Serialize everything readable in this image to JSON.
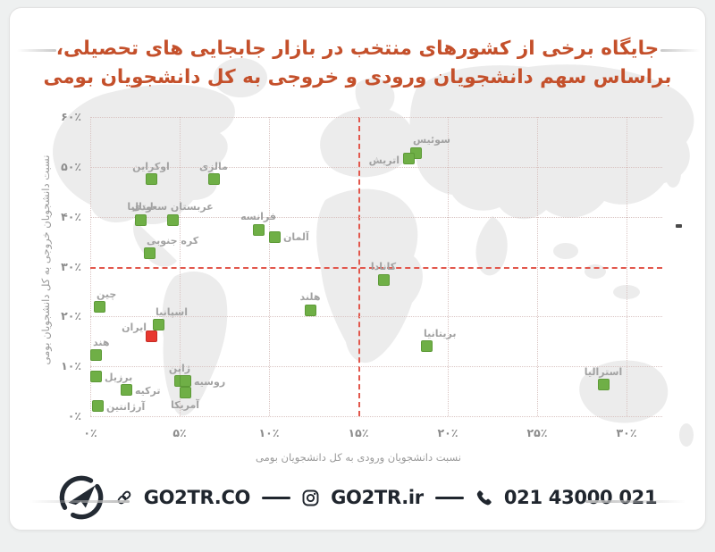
{
  "page": {
    "title_line1": "جایگاه برخی از کشورهای منتخب در بازار جابجایی های تحصیلی،",
    "title_line2": "براساس سهم دانشجویان ورودی و خروجی به کل دانشجویان بومی",
    "title_color": "#c4502b"
  },
  "chart_data": {
    "type": "scatter",
    "xlabel": "نسبت دانشجویان ورودی به کل دانشجویان بومی",
    "ylabel": "نسبت دانشجویان خروجی به کل دانشجویان بومی",
    "xlim": [
      0,
      30
    ],
    "ylim": [
      0,
      60
    ],
    "x_tick_values": [
      0,
      5,
      10,
      15,
      20,
      25,
      30
    ],
    "x_tick_labels": [
      "۰٪",
      "۵٪",
      "۱۰٪",
      "۱۵٪",
      "۲۰٪",
      "۲۵٪",
      "۳۰٪"
    ],
    "y_tick_values": [
      0,
      10,
      20,
      30,
      40,
      50,
      60
    ],
    "y_tick_labels": [
      "۰٪",
      "۱۰٪",
      "۲۰٪",
      "۳۰٪",
      "۴۰٪",
      "۵۰٪",
      "۶۰٪"
    ],
    "grid": true,
    "grid_color": "#d9c4c2",
    "reference_lines": {
      "vertical_x": 15,
      "horizontal_y": 30,
      "color": "#e2574c"
    },
    "marker_color": "#6faf46",
    "highlight_color": "#e8382f",
    "points": [
      {
        "name": "اوکراین",
        "en": "ukraine",
        "x": 3.4,
        "y": 47.5,
        "label_pos": "top"
      },
      {
        "name": "مالزی",
        "en": "malaysia",
        "x": 6.9,
        "y": 47.5,
        "label_pos": "top"
      },
      {
        "name": "ایتالیا",
        "en": "italy",
        "x": 2.8,
        "y": 39.4,
        "label_pos": "top"
      },
      {
        "name": "عربستان سعودی",
        "en": "saudi-arabia",
        "x": 4.6,
        "y": 39.4,
        "label_pos": "top"
      },
      {
        "name": "کره جنوبی",
        "en": "south-korea",
        "x": 3.3,
        "y": 32.6,
        "label_pos": "top-right"
      },
      {
        "name": "سوئیس",
        "en": "switzerland",
        "x": 18.2,
        "y": 52.8,
        "label_pos": "top-right"
      },
      {
        "name": "اتریش",
        "en": "austria",
        "x": 17.8,
        "y": 51.7,
        "label_pos": "left"
      },
      {
        "name": "فرانسه",
        "en": "france",
        "x": 9.4,
        "y": 37.4,
        "label_pos": "top"
      },
      {
        "name": "آلمان",
        "en": "germany",
        "x": 10.3,
        "y": 36.0,
        "label_pos": "right"
      },
      {
        "name": "کانادا",
        "en": "canada",
        "x": 16.4,
        "y": 27.4,
        "label_pos": "top"
      },
      {
        "name": "هلند",
        "en": "netherlands",
        "x": 12.3,
        "y": 21.3,
        "label_pos": "top"
      },
      {
        "name": "بریتانیا",
        "en": "britain",
        "x": 18.8,
        "y": 14.0,
        "label_pos": "top-right"
      },
      {
        "name": "استرالیا",
        "en": "australia",
        "x": 28.7,
        "y": 6.3,
        "label_pos": "top"
      },
      {
        "name": "چین",
        "en": "china",
        "x": 0.5,
        "y": 21.9,
        "label_pos": "top-right"
      },
      {
        "name": "اسپانیا",
        "en": "spain",
        "x": 3.8,
        "y": 18.3,
        "label_pos": "top-right"
      },
      {
        "name": "ایران",
        "en": "iran",
        "x": 3.4,
        "y": 16.1,
        "label_pos": "top-left",
        "highlight": true
      },
      {
        "name": "هند",
        "en": "india",
        "x": 0.3,
        "y": 12.2,
        "label_pos": "top-right"
      },
      {
        "name": "برزیل",
        "en": "brazil",
        "x": 0.3,
        "y": 7.9,
        "label_pos": "right"
      },
      {
        "name": "ترکیه",
        "en": "turkey",
        "x": 2.0,
        "y": 5.2,
        "label_pos": "right"
      },
      {
        "name": "آرژانتین",
        "en": "argentina",
        "x": 0.4,
        "y": 2.0,
        "label_pos": "right"
      },
      {
        "name": "ژاپن",
        "en": "japan",
        "x": 5.0,
        "y": 7.0,
        "label_pos": "top"
      },
      {
        "name": "روسیه",
        "en": "russia",
        "x": 5.3,
        "y": 7.0,
        "label_pos": "right"
      },
      {
        "name": "آمریکا",
        "en": "usa",
        "x": 5.3,
        "y": 4.8,
        "label_pos": "bottom"
      }
    ]
  },
  "footer": {
    "logo": "go2tr-logo",
    "website_icon": "link-icon",
    "website": "GO2TR.CO",
    "instagram_icon": "instagram-icon",
    "instagram": "GO2TR.ir",
    "phone_icon": "phone-icon",
    "phone": "021 43000 021",
    "text_color": "#20262e"
  }
}
